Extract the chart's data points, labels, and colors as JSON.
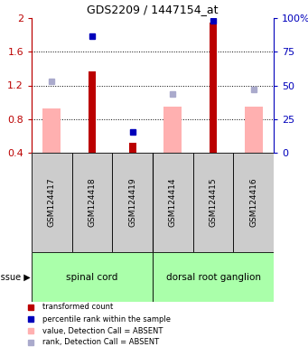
{
  "title": "GDS2209 / 1447154_at",
  "samples": [
    "GSM124417",
    "GSM124418",
    "GSM124419",
    "GSM124414",
    "GSM124415",
    "GSM124416"
  ],
  "red_bars": [
    null,
    1.37,
    0.52,
    null,
    1.95,
    null
  ],
  "pink_bars": [
    0.93,
    null,
    null,
    0.95,
    null,
    0.95
  ],
  "blue_squares": [
    null,
    1.78,
    0.65,
    null,
    1.97,
    null
  ],
  "light_blue_squares": [
    1.25,
    null,
    null,
    1.1,
    null,
    1.15
  ],
  "ylim_left": [
    0.4,
    2.0
  ],
  "ylim_right": [
    0,
    100
  ],
  "yticks_left": [
    0.4,
    0.8,
    1.2,
    1.6,
    2.0
  ],
  "ytick_labels_left": [
    "0.4",
    "0.8",
    "1.2",
    "1.6",
    "2"
  ],
  "yticks_right": [
    0,
    25,
    50,
    75,
    100
  ],
  "ytick_labels_right": [
    "0",
    "25",
    "50",
    "75",
    "100%"
  ],
  "tissue_groups": [
    {
      "label": "spinal cord",
      "start": 0,
      "end": 2,
      "color": "#aaffaa"
    },
    {
      "label": "dorsal root ganglion",
      "start": 3,
      "end": 5,
      "color": "#aaffaa"
    }
  ],
  "tissue_label": "tissue",
  "red_color": "#BB0000",
  "pink_color": "#FFB0B0",
  "blue_color": "#0000BB",
  "light_blue_color": "#AAAACC",
  "gray_box_color": "#CCCCCC",
  "legend_items": [
    {
      "label": "transformed count",
      "color": "#BB0000"
    },
    {
      "label": "percentile rank within the sample",
      "color": "#0000BB"
    },
    {
      "label": "value, Detection Call = ABSENT",
      "color": "#FFB0B0"
    },
    {
      "label": "rank, Detection Call = ABSENT",
      "color": "#AAAACC"
    }
  ]
}
